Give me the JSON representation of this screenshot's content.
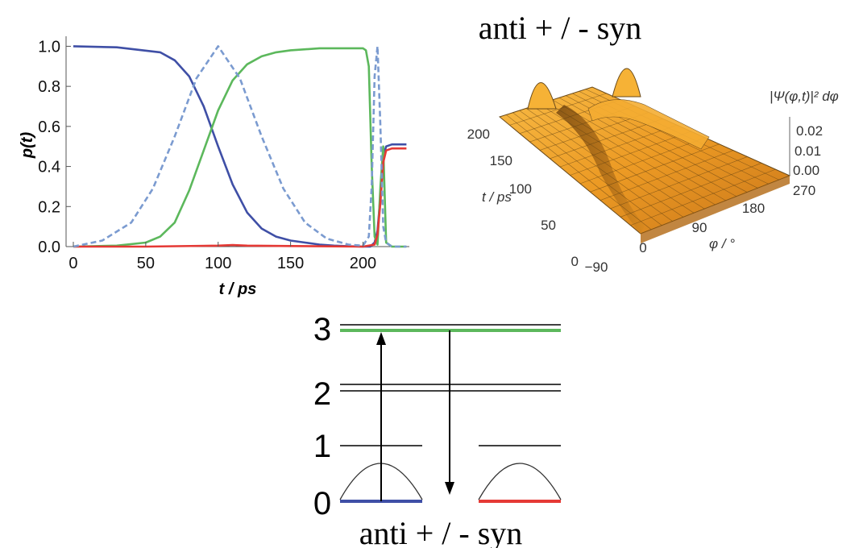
{
  "chart_data": [
    {
      "type": "line",
      "title": "",
      "xlabel": "t / ps",
      "ylabel": "p(t)",
      "xlim": [
        -5,
        232
      ],
      "ylim": [
        0,
        1.05
      ],
      "xticks": [
        "0",
        "50",
        "100",
        "150",
        "200"
      ],
      "yticks": [
        "0.0",
        "0.2",
        "0.4",
        "0.6",
        "0.8",
        "1.0"
      ],
      "grid": false,
      "series": [
        {
          "color": "#3f4fa6",
          "style": "solid",
          "x": [
            0,
            30,
            60,
            70,
            80,
            90,
            100,
            110,
            120,
            130,
            140,
            150,
            160,
            170,
            180,
            190,
            200,
            203,
            205,
            208,
            210,
            212,
            214,
            216,
            220,
            230
          ],
          "y": [
            1.0,
            0.995,
            0.97,
            0.93,
            0.85,
            0.7,
            0.5,
            0.31,
            0.17,
            0.09,
            0.05,
            0.03,
            0.02,
            0.01,
            0.005,
            0.002,
            0.0,
            0.0,
            0.0,
            0.02,
            0.08,
            0.25,
            0.45,
            0.5,
            0.51,
            0.51
          ]
        },
        {
          "color": "#5cb85c",
          "style": "solid",
          "x": [
            0,
            30,
            50,
            60,
            70,
            80,
            90,
            100,
            110,
            120,
            130,
            140,
            150,
            160,
            170,
            180,
            190,
            200,
            202,
            204,
            206,
            208,
            210,
            212,
            214,
            216,
            220,
            230
          ],
          "y": [
            0.0,
            0.005,
            0.02,
            0.05,
            0.12,
            0.28,
            0.48,
            0.68,
            0.83,
            0.91,
            0.95,
            0.97,
            0.98,
            0.985,
            0.99,
            0.99,
            0.99,
            0.99,
            0.98,
            0.9,
            0.4,
            0.05,
            0.01,
            0.3,
            0.5,
            0.02,
            0.0,
            0.0
          ]
        },
        {
          "color": "#e53935",
          "style": "solid",
          "x": [
            0,
            50,
            100,
            110,
            120,
            150,
            200,
            208,
            210,
            212,
            214,
            216,
            220,
            230
          ],
          "y": [
            0.0,
            0.0,
            0.005,
            0.008,
            0.005,
            0.003,
            0.0,
            0.01,
            0.06,
            0.22,
            0.42,
            0.48,
            0.49,
            0.49
          ]
        },
        {
          "color": "#7b9bd0",
          "style": "dashed",
          "x": [
            0,
            20,
            40,
            55,
            70,
            85,
            100,
            115,
            130,
            145,
            160,
            175,
            190,
            200,
            204,
            206,
            208,
            210,
            212,
            214,
            216,
            220,
            230
          ],
          "y": [
            0.0,
            0.03,
            0.12,
            0.29,
            0.55,
            0.84,
            1.0,
            0.84,
            0.55,
            0.29,
            0.12,
            0.04,
            0.01,
            0.005,
            0.05,
            0.3,
            0.85,
            1.0,
            0.6,
            0.1,
            0.02,
            0.0,
            0.0
          ]
        }
      ]
    },
    {
      "type": "surface",
      "title": "anti + / - syn",
      "xlabel": "φ / °",
      "ylabel": "t / ps",
      "zlabel": "|Ψ(φ,t)|² dφ",
      "xticks": [
        "−90",
        "0",
        "90",
        "180",
        "270"
      ],
      "yticks": [
        "0",
        "50",
        "100",
        "150",
        "200"
      ],
      "zticks": [
        "0.00",
        "0.01",
        "0.02"
      ],
      "surface_color": "#f2a02a"
    },
    {
      "type": "diagram",
      "title": "anti + / - syn",
      "level_labels": [
        "0",
        "1",
        "2",
        "3"
      ],
      "colors": {
        "anti": "#3f4fa6",
        "syn": "#e53935",
        "excited": "#5cb85c"
      }
    }
  ]
}
